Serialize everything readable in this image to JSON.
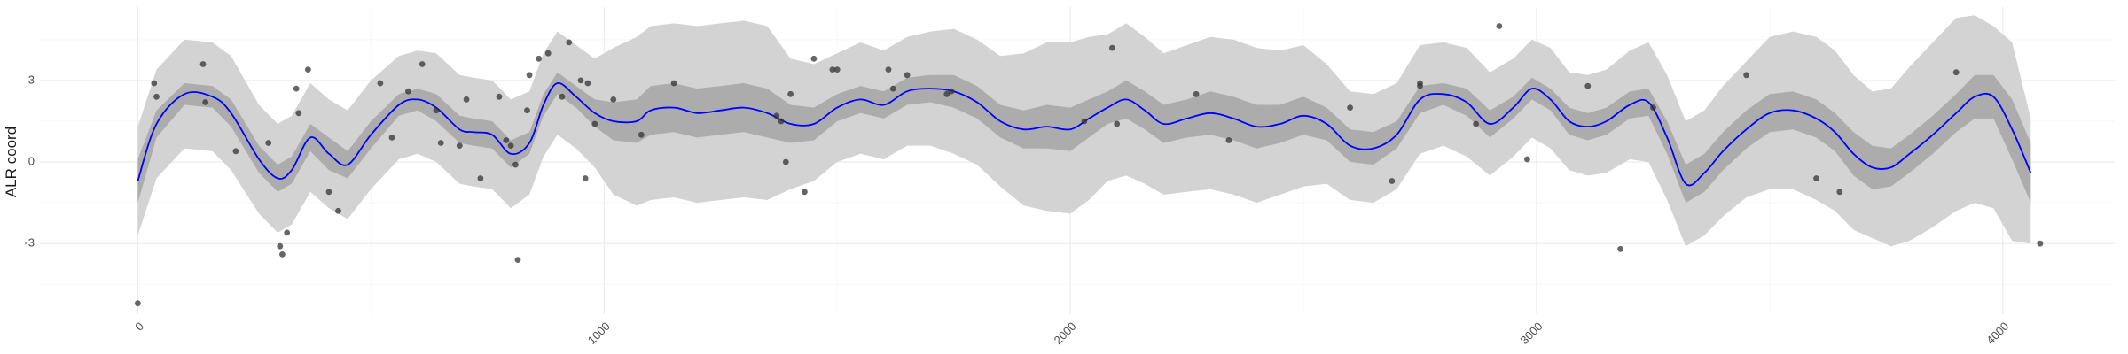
{
  "chart_data": {
    "type": "line",
    "xlabel": "",
    "ylabel": "ALR coord",
    "xlim": [
      -210,
      4240
    ],
    "ylim": [
      -5.6,
      5.7
    ],
    "grid": true,
    "legend": "none",
    "x_ticks": [
      0,
      1000,
      2000,
      3000,
      4000
    ],
    "y_ticks": [
      -3,
      0,
      3
    ],
    "x_tick_labels": [
      "0",
      "1000",
      "2000",
      "3000",
      "4000"
    ],
    "y_tick_labels": [
      "-3",
      "0",
      "3"
    ],
    "colors": {
      "line": "#0000ff",
      "inner_band": "#acacac",
      "outer_band": "#d3d3d3",
      "points": "#333333",
      "grid_major": "#ebebeb",
      "grid_minor": "#f5f5f5"
    },
    "fit_line": {
      "x": [
        0,
        40,
        100,
        160,
        200,
        260,
        300,
        330,
        370,
        410,
        450,
        500,
        560,
        600,
        640,
        690,
        720,
        760,
        800,
        840,
        870,
        900,
        940,
        980,
        1020,
        1070,
        1100,
        1150,
        1200,
        1250,
        1300,
        1350,
        1400,
        1450,
        1500,
        1550,
        1600,
        1650,
        1700,
        1750,
        1800,
        1850,
        1900,
        1950,
        2000,
        2040,
        2080,
        2120,
        2160,
        2200,
        2250,
        2300,
        2350,
        2400,
        2450,
        2500,
        2550,
        2600,
        2650,
        2700,
        2750,
        2800,
        2850,
        2900,
        2950,
        2990,
        3030,
        3070,
        3110,
        3150,
        3200,
        3240,
        3280,
        3320,
        3360,
        3400,
        3450,
        3500,
        3550,
        3600,
        3640,
        3680,
        3720,
        3760,
        3800,
        3850,
        3900,
        3940,
        3980,
        4020,
        4060
      ],
      "y": [
        -0.7,
        1.4,
        2.5,
        2.4,
        1.8,
        0.1,
        -0.6,
        -0.3,
        0.9,
        0.3,
        -0.1,
        1.0,
        2.1,
        2.3,
        2.0,
        1.2,
        1.1,
        1.0,
        0.3,
        0.7,
        2.1,
        2.9,
        2.4,
        1.8,
        1.5,
        1.5,
        1.9,
        2.0,
        1.8,
        1.9,
        2.0,
        1.8,
        1.4,
        1.4,
        2.0,
        2.3,
        2.1,
        2.6,
        2.7,
        2.6,
        2.2,
        1.5,
        1.2,
        1.3,
        1.2,
        1.6,
        2.0,
        2.3,
        1.9,
        1.4,
        1.6,
        1.8,
        1.6,
        1.3,
        1.4,
        1.7,
        1.4,
        0.6,
        0.5,
        1.0,
        2.3,
        2.5,
        2.2,
        1.4,
        2.0,
        2.7,
        2.3,
        1.5,
        1.3,
        1.5,
        2.1,
        2.2,
        0.9,
        -0.8,
        -0.4,
        0.4,
        1.2,
        1.8,
        1.9,
        1.6,
        1.1,
        0.3,
        -0.2,
        -0.2,
        0.3,
        1.0,
        1.8,
        2.4,
        2.4,
        1.2,
        -0.4
      ]
    },
    "inner_band": {
      "x": [
        0,
        40,
        100,
        160,
        200,
        260,
        300,
        330,
        370,
        410,
        450,
        500,
        560,
        600,
        640,
        690,
        720,
        760,
        800,
        840,
        870,
        900,
        940,
        980,
        1020,
        1070,
        1100,
        1150,
        1200,
        1250,
        1300,
        1350,
        1400,
        1450,
        1500,
        1550,
        1600,
        1650,
        1700,
        1750,
        1800,
        1850,
        1900,
        1950,
        2000,
        2040,
        2080,
        2120,
        2160,
        2200,
        2250,
        2300,
        2350,
        2400,
        2450,
        2500,
        2550,
        2600,
        2650,
        2700,
        2750,
        2800,
        2850,
        2900,
        2950,
        2990,
        3030,
        3070,
        3110,
        3150,
        3200,
        3240,
        3280,
        3320,
        3360,
        3400,
        3450,
        3500,
        3550,
        3600,
        3640,
        3680,
        3720,
        3760,
        3800,
        3850,
        3900,
        3940,
        3980,
        4020,
        4060
      ],
      "lower": [
        -1.5,
        0.9,
        2.1,
        2.0,
        1.3,
        -0.4,
        -1.1,
        -0.8,
        0.4,
        -0.3,
        -0.6,
        0.5,
        1.7,
        1.9,
        1.5,
        0.7,
        0.6,
        0.5,
        -0.2,
        0.3,
        1.7,
        2.5,
        2.0,
        1.3,
        0.8,
        0.7,
        1.0,
        1.1,
        0.9,
        1.0,
        1.1,
        0.9,
        0.7,
        0.8,
        1.5,
        1.8,
        1.6,
        2.1,
        2.2,
        2.0,
        1.6,
        0.9,
        0.5,
        0.5,
        0.4,
        0.9,
        1.4,
        1.6,
        1.2,
        0.7,
        0.9,
        1.0,
        0.8,
        0.5,
        0.7,
        1.0,
        0.8,
        0.0,
        -0.1,
        0.5,
        1.8,
        2.1,
        1.7,
        0.9,
        1.6,
        2.3,
        1.9,
        1.0,
        0.8,
        1.0,
        1.6,
        1.7,
        0.3,
        -1.5,
        -1.1,
        -0.3,
        0.5,
        1.1,
        1.2,
        0.9,
        0.4,
        -0.5,
        -1.0,
        -0.9,
        -0.4,
        0.3,
        1.1,
        1.6,
        1.6,
        0.1,
        -1.5
      ],
      "upper": [
        0.1,
        1.9,
        2.9,
        2.8,
        2.3,
        0.6,
        -0.1,
        0.2,
        1.4,
        0.9,
        0.4,
        1.5,
        2.5,
        2.7,
        2.5,
        1.7,
        1.6,
        1.5,
        0.8,
        1.1,
        2.5,
        3.3,
        2.8,
        2.3,
        2.2,
        2.3,
        2.8,
        2.9,
        2.7,
        2.8,
        2.9,
        2.7,
        2.1,
        2.0,
        2.5,
        2.8,
        2.6,
        3.1,
        3.2,
        3.2,
        2.8,
        2.1,
        1.9,
        2.1,
        2.0,
        2.3,
        2.6,
        3.0,
        2.6,
        2.1,
        2.3,
        2.6,
        2.4,
        2.1,
        2.1,
        2.4,
        2.0,
        1.2,
        1.1,
        1.5,
        2.8,
        2.9,
        2.7,
        1.9,
        2.4,
        3.1,
        2.7,
        2.0,
        1.8,
        2.0,
        2.6,
        2.7,
        1.5,
        -0.1,
        0.3,
        1.1,
        1.9,
        2.5,
        2.6,
        2.3,
        1.8,
        1.1,
        0.6,
        0.5,
        1.0,
        1.7,
        2.5,
        3.2,
        3.2,
        2.3,
        0.7
      ]
    },
    "outer_band": {
      "x": [
        0,
        40,
        100,
        160,
        200,
        260,
        300,
        330,
        370,
        410,
        450,
        500,
        560,
        600,
        640,
        690,
        720,
        760,
        800,
        840,
        870,
        900,
        940,
        980,
        1020,
        1070,
        1100,
        1150,
        1200,
        1250,
        1300,
        1350,
        1400,
        1450,
        1500,
        1550,
        1600,
        1650,
        1700,
        1750,
        1800,
        1850,
        1900,
        1950,
        2000,
        2040,
        2080,
        2120,
        2160,
        2200,
        2250,
        2300,
        2350,
        2400,
        2450,
        2500,
        2550,
        2600,
        2650,
        2700,
        2750,
        2800,
        2850,
        2900,
        2950,
        2990,
        3030,
        3070,
        3110,
        3150,
        3200,
        3240,
        3280,
        3320,
        3360,
        3400,
        3450,
        3500,
        3550,
        3600,
        3640,
        3680,
        3720,
        3760,
        3800,
        3850,
        3900,
        3940,
        3980,
        4020,
        4060
      ],
      "lower": [
        -2.7,
        -0.6,
        0.5,
        0.4,
        -0.3,
        -1.9,
        -2.6,
        -2.3,
        -1.1,
        -1.7,
        -2.1,
        -1.0,
        0.1,
        0.3,
        0.0,
        -0.8,
        -0.9,
        -1.0,
        -1.7,
        -1.2,
        0.2,
        1.0,
        0.5,
        -0.2,
        -1.2,
        -1.6,
        -1.4,
        -1.3,
        -1.5,
        -1.4,
        -1.3,
        -1.4,
        -1.0,
        -0.7,
        0.0,
        0.3,
        0.1,
        0.6,
        0.6,
        0.3,
        -0.1,
        -0.9,
        -1.6,
        -1.8,
        -1.9,
        -1.4,
        -0.7,
        -0.5,
        -0.8,
        -1.2,
        -1.1,
        -1.0,
        -1.2,
        -1.5,
        -1.2,
        -0.9,
        -0.8,
        -1.4,
        -1.5,
        -1.0,
        0.3,
        0.6,
        0.2,
        -0.5,
        0.2,
        0.9,
        0.5,
        -0.3,
        -0.5,
        -0.4,
        0.1,
        0.0,
        -1.4,
        -3.1,
        -2.7,
        -2.0,
        -1.3,
        -1.0,
        -1.0,
        -1.4,
        -1.8,
        -2.5,
        -2.8,
        -3.1,
        -2.9,
        -2.4,
        -1.8,
        -1.5,
        -1.7,
        -2.9,
        -3.0
      ],
      "upper": [
        1.3,
        3.4,
        4.5,
        4.4,
        3.9,
        2.1,
        1.4,
        1.7,
        2.9,
        2.3,
        1.9,
        3.0,
        3.9,
        4.1,
        4.0,
        3.2,
        3.1,
        3.0,
        2.3,
        2.6,
        4.0,
        4.8,
        4.3,
        3.8,
        4.2,
        4.6,
        5.0,
        5.1,
        5.0,
        5.1,
        5.2,
        5.0,
        3.8,
        3.6,
        4.0,
        4.4,
        4.1,
        4.6,
        4.8,
        4.9,
        4.5,
        3.9,
        4.0,
        4.4,
        4.4,
        4.6,
        4.7,
        5.1,
        4.6,
        4.0,
        4.3,
        4.6,
        4.5,
        4.2,
        4.1,
        4.3,
        3.6,
        2.6,
        2.5,
        2.9,
        4.3,
        4.4,
        4.2,
        3.3,
        3.8,
        4.5,
        4.2,
        3.3,
        3.2,
        3.4,
        4.1,
        4.4,
        3.2,
        1.5,
        1.9,
        2.8,
        3.7,
        4.6,
        4.8,
        4.6,
        4.1,
        3.2,
        2.6,
        2.7,
        3.5,
        4.4,
        5.3,
        5.4,
        5.0,
        4.4,
        1.6
      ]
    },
    "points": {
      "x": [
        0,
        35,
        40,
        140,
        145,
        210,
        280,
        305,
        310,
        320,
        340,
        345,
        365,
        410,
        430,
        520,
        545,
        580,
        610,
        640,
        650,
        690,
        705,
        735,
        775,
        790,
        800,
        810,
        815,
        835,
        840,
        860,
        880,
        910,
        925,
        950,
        960,
        965,
        980,
        1020,
        1080,
        1150,
        1370,
        1380,
        1390,
        1400,
        1430,
        1450,
        1490,
        1500,
        1610,
        1620,
        1650,
        1735,
        1745,
        2030,
        2090,
        2100,
        2270,
        2340,
        2600,
        2690,
        2750,
        2750,
        2870,
        2920,
        2980,
        3110,
        3180,
        3250,
        3450,
        3600,
        3650,
        3900,
        4080
      ],
      "y": [
        -5.2,
        2.9,
        2.4,
        3.6,
        2.2,
        0.4,
        0.7,
        -3.1,
        -3.4,
        -2.6,
        2.7,
        1.8,
        3.4,
        -1.1,
        -1.8,
        2.9,
        0.9,
        2.6,
        3.6,
        1.9,
        0.7,
        0.6,
        2.3,
        -0.6,
        2.4,
        0.8,
        0.6,
        -0.1,
        -3.6,
        1.9,
        3.2,
        3.8,
        4.0,
        2.4,
        4.4,
        3.0,
        -0.6,
        2.9,
        1.4,
        2.3,
        1.0,
        2.9,
        1.7,
        1.5,
        0.0,
        2.5,
        -1.1,
        3.8,
        3.4,
        3.4,
        3.4,
        2.7,
        3.2,
        2.5,
        2.6,
        1.5,
        4.2,
        1.4,
        2.5,
        0.8,
        2.0,
        -0.7,
        2.8,
        2.9,
        1.4,
        5.0,
        0.1,
        2.8,
        -3.2,
        2.0,
        3.2,
        -0.6,
        -1.1,
        3.3,
        -3.0
      ]
    }
  }
}
